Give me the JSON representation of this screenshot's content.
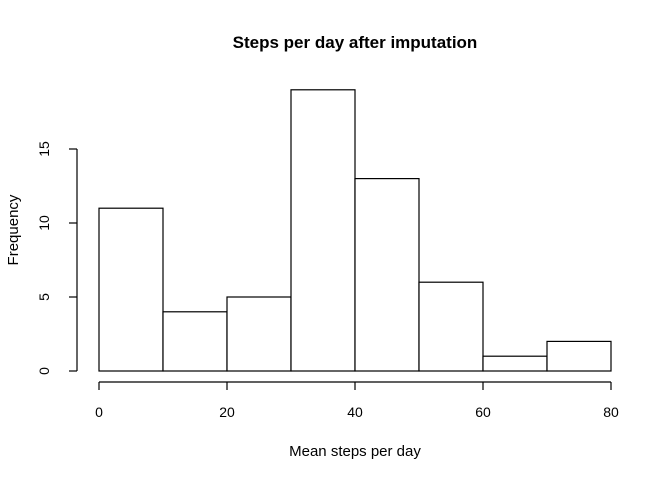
{
  "chart_data": {
    "type": "bar",
    "title": "Steps per day after imputation",
    "xlabel": "Mean steps per day",
    "ylabel": "Frequency",
    "bins": [
      {
        "start": 0,
        "end": 10,
        "count": 11
      },
      {
        "start": 10,
        "end": 20,
        "count": 4
      },
      {
        "start": 20,
        "end": 30,
        "count": 5
      },
      {
        "start": 30,
        "end": 40,
        "count": 19
      },
      {
        "start": 40,
        "end": 50,
        "count": 13
      },
      {
        "start": 50,
        "end": 60,
        "count": 6
      },
      {
        "start": 60,
        "end": 70,
        "count": 1
      },
      {
        "start": 70,
        "end": 80,
        "count": 2
      }
    ],
    "xlim": [
      0,
      80
    ],
    "ylim": [
      0,
      19
    ],
    "x_ticks": [
      0,
      20,
      40,
      60,
      80
    ],
    "y_ticks": [
      0,
      5,
      10,
      15
    ],
    "grid": false,
    "bar_fill": "#ffffff",
    "bar_stroke": "#000000"
  }
}
